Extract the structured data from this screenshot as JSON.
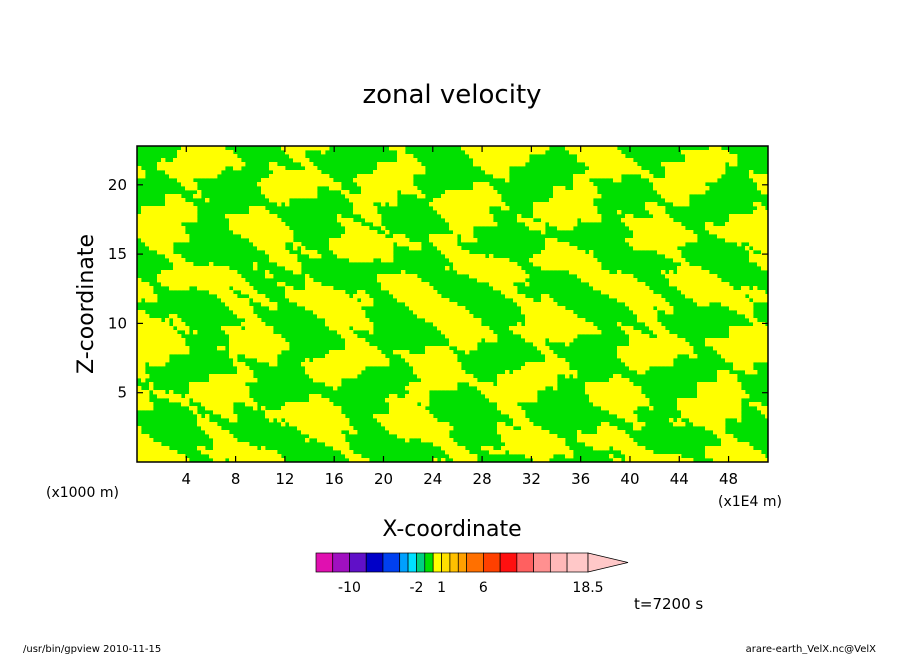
{
  "chart_data": {
    "type": "heatmap",
    "title": "zonal velocity",
    "xlabel": "X-coordinate",
    "ylabel": "Z-coordinate",
    "x_unit": "(x1E4 m)",
    "y_unit": "(x1000 m)",
    "xlim": [
      0,
      51.2
    ],
    "ylim": [
      0,
      22.8
    ],
    "x_ticks": [
      4,
      8,
      12,
      16,
      20,
      24,
      28,
      32,
      36,
      40,
      44,
      48
    ],
    "y_ticks": [
      5,
      10,
      15,
      20
    ],
    "grid": false,
    "time_label": "t=7200 s",
    "colorbar": {
      "boundaries": [
        -14,
        -12,
        -10,
        -8,
        -6,
        -4,
        -3,
        -2,
        -1,
        0,
        1,
        2,
        3,
        4,
        6,
        8,
        10,
        12,
        14,
        16,
        18.5
      ],
      "tick_labels": [
        "-10",
        "-2",
        "1",
        "6",
        "18.5"
      ],
      "tick_values": [
        -10,
        -2,
        1,
        6,
        18.5
      ],
      "colors": [
        "#e010b0",
        "#a010c0",
        "#6010c8",
        "#0000c8",
        "#0040f0",
        "#00a0ff",
        "#00e0ff",
        "#00d080",
        "#00e000",
        "#ffff00",
        "#ffe000",
        "#ffc000",
        "#ffa000",
        "#ff7000",
        "#ff4000",
        "#ff1010",
        "#ff6060",
        "#ff9090",
        "#ffb8b8",
        "#ffc8c8"
      ]
    },
    "field_bands": [
      {
        "range": [
          -1,
          0
        ],
        "color": "#00e000"
      },
      {
        "range": [
          0,
          1
        ],
        "color": "#ffff00"
      }
    ]
  },
  "footer": {
    "left": "/usr/bin/gpview   2010-11-15",
    "right": "arare-earth_VelX.nc@VelX"
  }
}
